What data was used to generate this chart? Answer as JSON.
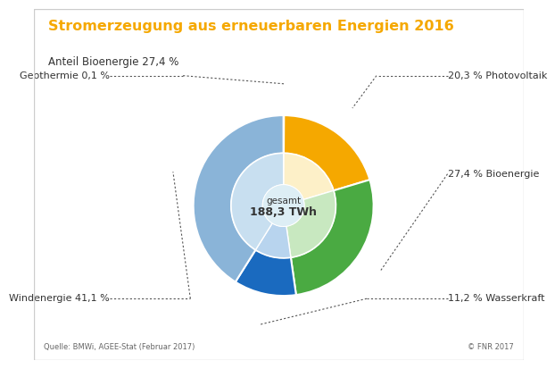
{
  "title": "Stromerzeugung aus erneuerbaren Energien 2016",
  "subtitle": "Anteil Bioenergie 27,4 %",
  "center_label_line1": "gesamt",
  "center_label_line2": "188,3 TWh",
  "slices": [
    {
      "label": "Geothermie 0,1 %",
      "value": 0.1,
      "color": "#f5a800",
      "inner_color": "#fdf0c8"
    },
    {
      "label": "20,3 % Photovoltaik",
      "value": 20.3,
      "color": "#f5a800",
      "inner_color": "#fdf0c8"
    },
    {
      "label": "27,4 % Bioenergie",
      "value": 27.4,
      "color": "#4aaa42",
      "inner_color": "#c8e8c0"
    },
    {
      "label": "11,2 % Wasserkraft",
      "value": 11.2,
      "color": "#1a6abf",
      "inner_color": "#b8d4ee"
    },
    {
      "label": "Windenergie 41,1 %",
      "value": 41.1,
      "color": "#8ab4d8",
      "inner_color": "#c8dff0"
    }
  ],
  "title_color": "#f5a800",
  "subtitle_color": "#333333",
  "label_color": "#333333",
  "source_text": "Quelle: BMWi, AGEE-Stat (Februar 2017)",
  "copyright_text": "© FNR 2017",
  "background_color": "#ffffff",
  "donut_center_color": "#ddeef5",
  "start_angle": 90
}
